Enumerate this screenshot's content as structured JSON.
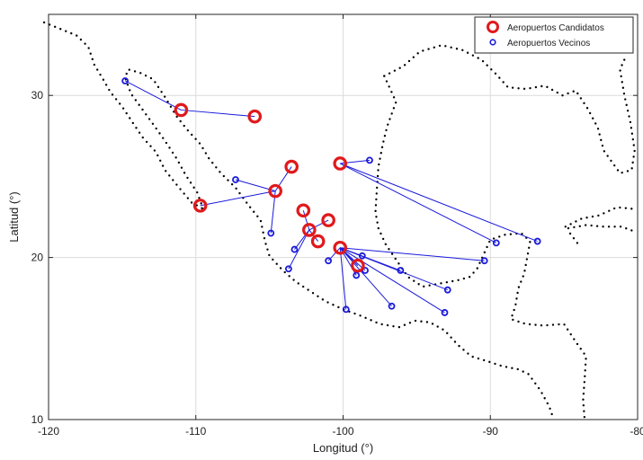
{
  "chart_data": {
    "type": "scatter",
    "title": "",
    "xlabel": "Longitud (°)",
    "ylabel": "Latitud (°)",
    "xlim": [
      -120,
      -80
    ],
    "ylim": [
      10,
      35
    ],
    "xticks": [
      -120,
      -110,
      -100,
      -90,
      -80
    ],
    "yticks": [
      10,
      20,
      30
    ],
    "xtick_labels": [
      "-120",
      "-110",
      "-100",
      "-90",
      "-80"
    ],
    "ytick_labels": [
      "10",
      "20",
      "30"
    ],
    "grid": true,
    "legend_position": "top-right",
    "colors": {
      "candidate": "#e0191c",
      "neighbor": "#1a1adc",
      "coast": "#000000",
      "grid": "#dcdcdc"
    },
    "series": [
      {
        "name": "Aeropuertos Candidatos",
        "marker": "circle-large",
        "points": [
          {
            "x": -111.0,
            "y": 29.1
          },
          {
            "x": -106.0,
            "y": 28.7
          },
          {
            "x": -103.5,
            "y": 25.6
          },
          {
            "x": -104.6,
            "y": 24.1
          },
          {
            "x": -109.7,
            "y": 23.2
          },
          {
            "x": -100.2,
            "y": 25.8
          },
          {
            "x": -102.7,
            "y": 22.9
          },
          {
            "x": -101.0,
            "y": 22.3
          },
          {
            "x": -102.3,
            "y": 21.7
          },
          {
            "x": -101.7,
            "y": 21.0
          },
          {
            "x": -100.2,
            "y": 20.6
          },
          {
            "x": -99.0,
            "y": 19.5
          }
        ]
      },
      {
        "name": "Aeropuertos Vecinos",
        "marker": "circle-small",
        "points": [
          {
            "x": -114.8,
            "y": 30.9
          },
          {
            "x": -107.3,
            "y": 24.8
          },
          {
            "x": -104.9,
            "y": 21.5
          },
          {
            "x": -98.2,
            "y": 26.0
          },
          {
            "x": -86.8,
            "y": 21.0
          },
          {
            "x": -89.6,
            "y": 20.9
          },
          {
            "x": -103.3,
            "y": 20.5
          },
          {
            "x": -103.7,
            "y": 19.3
          },
          {
            "x": -101.0,
            "y": 19.8
          },
          {
            "x": -98.7,
            "y": 20.1
          },
          {
            "x": -90.4,
            "y": 19.8
          },
          {
            "x": -96.1,
            "y": 19.2
          },
          {
            "x": -98.5,
            "y": 19.2
          },
          {
            "x": -99.1,
            "y": 18.9
          },
          {
            "x": -92.9,
            "y": 18.0
          },
          {
            "x": -96.7,
            "y": 17.0
          },
          {
            "x": -99.8,
            "y": 16.8
          },
          {
            "x": -93.1,
            "y": 16.6
          }
        ]
      }
    ],
    "links": [
      [
        [
          -111.0,
          29.1
        ],
        [
          -114.8,
          30.9
        ]
      ],
      [
        [
          -111.0,
          29.1
        ],
        [
          -106.0,
          28.7
        ]
      ],
      [
        [
          -104.6,
          24.1
        ],
        [
          -107.3,
          24.8
        ]
      ],
      [
        [
          -104.6,
          24.1
        ],
        [
          -103.5,
          25.6
        ]
      ],
      [
        [
          -104.6,
          24.1
        ],
        [
          -109.7,
          23.2
        ]
      ],
      [
        [
          -104.6,
          24.1
        ],
        [
          -104.9,
          21.5
        ]
      ],
      [
        [
          -100.2,
          25.8
        ],
        [
          -98.2,
          26.0
        ]
      ],
      [
        [
          -100.2,
          25.8
        ],
        [
          -86.8,
          21.0
        ]
      ],
      [
        [
          -100.2,
          25.8
        ],
        [
          -89.6,
          20.9
        ]
      ],
      [
        [
          -102.3,
          21.7
        ],
        [
          -101.0,
          22.3
        ]
      ],
      [
        [
          -102.3,
          21.7
        ],
        [
          -102.7,
          22.9
        ]
      ],
      [
        [
          -102.3,
          21.7
        ],
        [
          -103.3,
          20.5
        ]
      ],
      [
        [
          -102.3,
          21.7
        ],
        [
          -103.7,
          19.3
        ]
      ],
      [
        [
          -102.3,
          21.7
        ],
        [
          -101.7,
          21.0
        ]
      ],
      [
        [
          -100.2,
          20.6
        ],
        [
          -101.0,
          19.8
        ]
      ],
      [
        [
          -100.2,
          20.6
        ],
        [
          -98.7,
          20.1
        ]
      ],
      [
        [
          -100.2,
          20.6
        ],
        [
          -90.4,
          19.8
        ]
      ],
      [
        [
          -100.2,
          20.6
        ],
        [
          -96.1,
          19.2
        ]
      ],
      [
        [
          -100.2,
          20.6
        ],
        [
          -98.5,
          19.2
        ]
      ],
      [
        [
          -100.2,
          20.6
        ],
        [
          -99.1,
          18.9
        ]
      ],
      [
        [
          -100.2,
          20.6
        ],
        [
          -92.9,
          18.0
        ]
      ],
      [
        [
          -100.2,
          20.6
        ],
        [
          -96.7,
          17.0
        ]
      ],
      [
        [
          -100.2,
          20.6
        ],
        [
          -99.8,
          16.8
        ]
      ],
      [
        [
          -100.2,
          20.6
        ],
        [
          -93.1,
          16.6
        ]
      ],
      [
        [
          -100.2,
          20.6
        ],
        [
          -99.0,
          19.5
        ]
      ]
    ],
    "coastlines": [
      [
        [
          -120.3,
          34.5
        ],
        [
          -119.2,
          34.1
        ],
        [
          -118.1,
          33.7
        ],
        [
          -117.3,
          33.0
        ],
        [
          -116.9,
          31.9
        ],
        [
          -116.3,
          31.0
        ],
        [
          -115.8,
          30.2
        ],
        [
          -115.0,
          29.3
        ],
        [
          -114.2,
          28.2
        ],
        [
          -113.6,
          27.4
        ],
        [
          -112.7,
          26.5
        ],
        [
          -112.1,
          25.4
        ],
        [
          -111.4,
          24.6
        ],
        [
          -110.3,
          23.4
        ],
        [
          -109.5,
          23.0
        ]
      ],
      [
        [
          -109.5,
          23.0
        ],
        [
          -109.9,
          24.0
        ],
        [
          -110.7,
          25.1
        ],
        [
          -111.3,
          26.1
        ],
        [
          -112.1,
          27.2
        ],
        [
          -112.8,
          28.1
        ],
        [
          -113.6,
          29.1
        ],
        [
          -114.4,
          30.1
        ],
        [
          -114.8,
          31.1
        ],
        [
          -114.6,
          31.6
        ],
        [
          -113.8,
          31.4
        ],
        [
          -112.9,
          31.0
        ],
        [
          -112.1,
          29.9
        ],
        [
          -111.3,
          28.7
        ],
        [
          -110.6,
          27.9
        ],
        [
          -109.7,
          27.0
        ],
        [
          -109.1,
          26.1
        ],
        [
          -108.3,
          25.2
        ],
        [
          -107.3,
          24.3
        ],
        [
          -106.4,
          23.2
        ],
        [
          -105.6,
          22.3
        ],
        [
          -105.3,
          21.0
        ],
        [
          -105.0,
          20.1
        ],
        [
          -104.1,
          19.2
        ],
        [
          -103.2,
          18.5
        ],
        [
          -102.2,
          17.9
        ],
        [
          -101.2,
          17.3
        ],
        [
          -100.0,
          16.8
        ],
        [
          -98.8,
          16.4
        ],
        [
          -97.5,
          15.9
        ],
        [
          -96.2,
          15.7
        ],
        [
          -95.1,
          16.1
        ],
        [
          -94.1,
          16.0
        ],
        [
          -93.1,
          15.5
        ],
        [
          -92.2,
          14.6
        ],
        [
          -91.3,
          13.9
        ],
        [
          -90.2,
          13.6
        ],
        [
          -89.2,
          13.3
        ],
        [
          -88.1,
          13.1
        ],
        [
          -87.4,
          12.8
        ],
        [
          -86.6,
          11.8
        ],
        [
          -86.0,
          10.8
        ],
        [
          -85.7,
          10.0
        ]
      ],
      [
        [
          -97.2,
          31.2
        ],
        [
          -96.4,
          29.6
        ],
        [
          -97.0,
          28.1
        ],
        [
          -97.3,
          27.0
        ],
        [
          -97.6,
          25.6
        ],
        [
          -97.7,
          24.3
        ],
        [
          -97.8,
          22.8
        ],
        [
          -97.6,
          21.8
        ],
        [
          -97.1,
          20.8
        ],
        [
          -96.2,
          19.6
        ],
        [
          -95.6,
          18.8
        ],
        [
          -94.6,
          18.2
        ],
        [
          -93.4,
          18.4
        ],
        [
          -92.2,
          18.6
        ],
        [
          -91.4,
          18.8
        ],
        [
          -90.9,
          19.3
        ],
        [
          -90.4,
          20.3
        ],
        [
          -90.0,
          21.1
        ],
        [
          -89.0,
          21.4
        ],
        [
          -87.9,
          21.5
        ],
        [
          -87.3,
          21.0
        ],
        [
          -87.5,
          20.0
        ],
        [
          -87.7,
          19.0
        ],
        [
          -88.1,
          18.1
        ],
        [
          -88.3,
          17.0
        ],
        [
          -88.6,
          16.2
        ],
        [
          -87.6,
          15.9
        ],
        [
          -86.4,
          15.8
        ],
        [
          -85.0,
          15.9
        ],
        [
          -84.2,
          14.8
        ],
        [
          -83.5,
          13.9
        ],
        [
          -83.6,
          12.5
        ],
        [
          -83.7,
          11.2
        ],
        [
          -83.6,
          10.0
        ]
      ],
      [
        [
          -97.2,
          31.2
        ],
        [
          -95.9,
          31.8
        ],
        [
          -94.8,
          32.7
        ],
        [
          -93.3,
          33.1
        ],
        [
          -91.9,
          32.8
        ],
        [
          -90.6,
          32.2
        ],
        [
          -89.6,
          31.3
        ],
        [
          -88.8,
          30.5
        ],
        [
          -87.6,
          30.4
        ],
        [
          -86.3,
          30.6
        ],
        [
          -85.1,
          30.0
        ],
        [
          -84.2,
          30.3
        ],
        [
          -83.4,
          29.2
        ],
        [
          -82.7,
          28.0
        ],
        [
          -82.3,
          26.6
        ],
        [
          -81.2,
          25.2
        ],
        [
          -80.4,
          25.4
        ],
        [
          -80.2,
          26.6
        ],
        [
          -80.5,
          28.4
        ],
        [
          -80.9,
          30.0
        ],
        [
          -81.2,
          31.6
        ],
        [
          -80.8,
          32.4
        ]
      ],
      [
        [
          -84.9,
          21.9
        ],
        [
          -83.8,
          22.4
        ],
        [
          -82.6,
          22.6
        ],
        [
          -81.4,
          23.1
        ],
        [
          -80.3,
          23.0
        ]
      ],
      [
        [
          -84.7,
          21.8
        ],
        [
          -83.5,
          22.0
        ],
        [
          -82.3,
          21.9
        ],
        [
          -81.1,
          21.9
        ],
        [
          -80.2,
          21.6
        ]
      ],
      [
        [
          -84.1,
          20.9
        ],
        [
          -84.6,
          21.5
        ]
      ]
    ]
  },
  "legend": {
    "items": [
      {
        "label": "Aeropuertos Candidatos"
      },
      {
        "label": "Aeropuertos Vecinos"
      }
    ]
  }
}
